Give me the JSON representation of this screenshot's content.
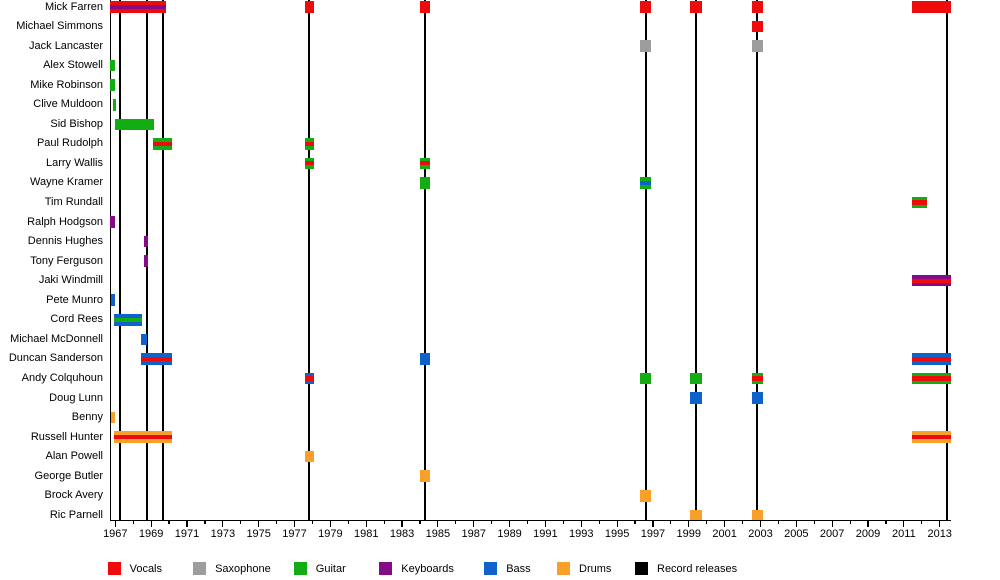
{
  "chart_data": {
    "type": "timeline",
    "description": "Band members timeline with record releases",
    "x_axis": {
      "start": 1966.72,
      "end": 2013.63,
      "major_tick_start": 1967,
      "major_tick_end": 2013,
      "major_tick_step": 2,
      "minor_tick_step": 1,
      "grid": false
    },
    "roles": {
      "vocals": "#ef0b0b",
      "saxophone": "#9d9d9d",
      "guitar": "#12ad12",
      "keyboards": "#840b87",
      "bass": "#0f61cb",
      "drums": "#f9a02a",
      "release": "#000000"
    },
    "members": [
      {
        "name": "Mick Farren",
        "stints": [
          {
            "from": 1966.72,
            "till": 1969.81,
            "role": "vocals",
            "stripe": "keyboards"
          },
          {
            "from": 1977.56,
            "till": 1978.09,
            "role": "vocals"
          },
          {
            "from": 1984.01,
            "till": 1984.58,
            "role": "vocals"
          },
          {
            "from": 1996.29,
            "till": 1996.91,
            "role": "vocals"
          },
          {
            "from": 1999.09,
            "till": 1999.71,
            "role": "vocals"
          },
          {
            "from": 2002.5,
            "till": 2003.12,
            "role": "vocals"
          },
          {
            "from": 2011.46,
            "till": 2013.63,
            "role": "vocals"
          }
        ]
      },
      {
        "name": "Michael Simmons",
        "stints": [
          {
            "from": 2002.5,
            "till": 2003.12,
            "role": "vocals"
          }
        ]
      },
      {
        "name": "Jack Lancaster",
        "stints": [
          {
            "from": 1996.29,
            "till": 1996.91,
            "role": "saxophone"
          },
          {
            "from": 2002.5,
            "till": 2003.12,
            "role": "saxophone"
          }
        ]
      },
      {
        "name": "Alex Stowell",
        "stints": [
          {
            "from": 1966.72,
            "till": 1967.01,
            "role": "guitar"
          }
        ]
      },
      {
        "name": "Mike Robinson",
        "stints": [
          {
            "from": 1966.72,
            "till": 1966.98,
            "role": "guitar"
          }
        ]
      },
      {
        "name": "Clive Muldoon",
        "stints": [
          {
            "from": 1966.89,
            "till": 1967.04,
            "role": "guitar"
          }
        ]
      },
      {
        "name": "Sid Bishop",
        "stints": [
          {
            "from": 1966.99,
            "till": 1969.15,
            "role": "guitar"
          }
        ]
      },
      {
        "name": "Paul Rudolph",
        "stints": [
          {
            "from": 1969.11,
            "till": 1970.16,
            "role": "guitar",
            "stripe": "vocals"
          },
          {
            "from": 1977.56,
            "till": 1978.09,
            "role": "guitar",
            "stripe": "vocals"
          }
        ]
      },
      {
        "name": "Larry Wallis",
        "stints": [
          {
            "from": 1977.56,
            "till": 1978.09,
            "role": "guitar",
            "stripe": "vocals"
          },
          {
            "from": 1984.01,
            "till": 1984.58,
            "role": "guitar",
            "stripe": "vocals"
          }
        ]
      },
      {
        "name": "Wayne Kramer",
        "stints": [
          {
            "from": 1984.01,
            "till": 1984.58,
            "role": "guitar"
          },
          {
            "from": 1996.29,
            "till": 1996.91,
            "role": "guitar",
            "stripe": "bass"
          }
        ]
      },
      {
        "name": "Tim Rundall",
        "stints": [
          {
            "from": 2011.46,
            "till": 2012.28,
            "role": "guitar",
            "stripe": "vocals"
          }
        ]
      },
      {
        "name": "Ralph Hodgson",
        "stints": [
          {
            "from": 1966.72,
            "till": 1966.98,
            "role": "keyboards"
          }
        ]
      },
      {
        "name": "Dennis Hughes",
        "stints": [
          {
            "from": 1968.58,
            "till": 1968.81,
            "role": "keyboards"
          }
        ]
      },
      {
        "name": "Tony Ferguson",
        "stints": [
          {
            "from": 1968.58,
            "till": 1968.81,
            "role": "keyboards"
          }
        ]
      },
      {
        "name": "Jaki Windmill",
        "stints": [
          {
            "from": 2011.46,
            "till": 2013.63,
            "role": "keyboards",
            "stripe": "vocals"
          }
        ]
      },
      {
        "name": "Pete Munro",
        "stints": [
          {
            "from": 1966.74,
            "till": 1966.97,
            "role": "bass"
          }
        ]
      },
      {
        "name": "Cord Rees",
        "stints": [
          {
            "from": 1966.95,
            "till": 1968.48,
            "role": "bass",
            "stripe": "guitar"
          }
        ]
      },
      {
        "name": "Michael McDonnell",
        "stints": [
          {
            "from": 1968.42,
            "till": 1968.78,
            "role": "bass"
          }
        ]
      },
      {
        "name": "Duncan Sanderson",
        "stints": [
          {
            "from": 1968.41,
            "till": 1970.15,
            "role": "bass",
            "stripe": "vocals"
          },
          {
            "from": 1984.01,
            "till": 1984.58,
            "role": "bass"
          },
          {
            "from": 2011.46,
            "till": 2013.63,
            "role": "bass",
            "stripe": "vocals"
          }
        ]
      },
      {
        "name": "Andy Colquhoun",
        "stints": [
          {
            "from": 1977.56,
            "till": 1978.09,
            "role": "bass",
            "stripe": "vocals"
          },
          {
            "from": 1996.29,
            "till": 1996.91,
            "role": "guitar"
          },
          {
            "from": 1999.09,
            "till": 1999.71,
            "role": "guitar"
          },
          {
            "from": 2002.5,
            "till": 2003.12,
            "role": "guitar",
            "stripe": "vocals"
          },
          {
            "from": 2011.46,
            "till": 2013.63,
            "role": "guitar",
            "stripe": "vocals"
          }
        ]
      },
      {
        "name": "Doug Lunn",
        "stints": [
          {
            "from": 1999.09,
            "till": 1999.71,
            "role": "bass"
          },
          {
            "from": 2002.5,
            "till": 2003.12,
            "role": "bass"
          }
        ]
      },
      {
        "name": "Benny",
        "stints": [
          {
            "from": 1966.78,
            "till": 1966.97,
            "role": "drums"
          }
        ]
      },
      {
        "name": "Russell Hunter",
        "stints": [
          {
            "from": 1966.9,
            "till": 1970.16,
            "role": "drums",
            "stripe": "vocals"
          },
          {
            "from": 2011.46,
            "till": 2013.63,
            "role": "drums",
            "stripe": "vocals"
          }
        ]
      },
      {
        "name": "Alan Powell",
        "stints": [
          {
            "from": 1977.56,
            "till": 1978.09,
            "role": "drums"
          }
        ]
      },
      {
        "name": "George Butler",
        "stints": [
          {
            "from": 1984.01,
            "till": 1984.58,
            "role": "drums"
          }
        ]
      },
      {
        "name": "Brock Avery",
        "stints": [
          {
            "from": 1996.29,
            "till": 1996.91,
            "role": "drums"
          }
        ]
      },
      {
        "name": "Ric Parnell",
        "stints": [
          {
            "from": 1999.09,
            "till": 1999.71,
            "role": "drums"
          },
          {
            "from": 2002.5,
            "till": 2003.12,
            "role": "drums"
          }
        ]
      }
    ],
    "record_releases": [
      1967.26,
      1968.77,
      1969.66,
      1977.83,
      1984.3,
      1996.59,
      1999.39,
      2002.82,
      2013.41
    ],
    "legend": [
      {
        "label": "Vocals",
        "role": "vocals"
      },
      {
        "label": "Saxophone",
        "role": "saxophone"
      },
      {
        "label": "Guitar",
        "role": "guitar"
      },
      {
        "label": "Keyboards",
        "role": "keyboards"
      },
      {
        "label": "Bass",
        "role": "bass"
      },
      {
        "label": "Drums",
        "role": "drums"
      },
      {
        "label": "Record releases",
        "role": "release"
      }
    ]
  }
}
